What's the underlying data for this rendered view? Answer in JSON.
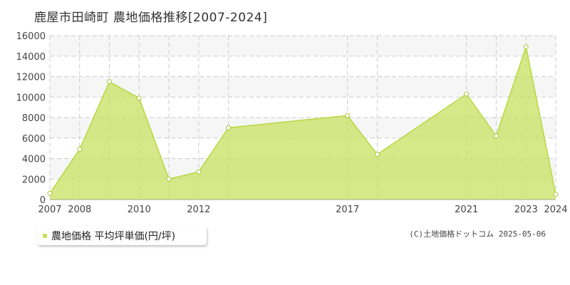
{
  "title": "鹿屋市田崎町 農地価格推移[2007-2024]",
  "credit": "(C)土地価格ドットコム 2025-05-06",
  "legend": {
    "label": "農地価格 平均坪単価(円/坪)",
    "color": "#c8e060"
  },
  "chart_data": {
    "type": "area",
    "title": "鹿屋市田崎町 農地価格推移[2007-2024]",
    "x": [
      2007,
      2008,
      2009,
      2010,
      2011,
      2012,
      2013,
      2017,
      2018,
      2021,
      2022,
      2023,
      2024
    ],
    "x_tick_labels": [
      "2007",
      "2008",
      "2010",
      "2012",
      "2017",
      "2021",
      "2023",
      "2024"
    ],
    "y_ticks": [
      0,
      2000,
      4000,
      6000,
      8000,
      10000,
      12000,
      14000,
      16000
    ],
    "ylim": [
      0,
      16000
    ],
    "grid": true,
    "series": [
      {
        "name": "農地価格 平均坪単価(円/坪)",
        "values": [
          600,
          4900,
          11500,
          9900,
          2000,
          2700,
          7000,
          8200,
          4400,
          10300,
          6200,
          14900,
          500
        ],
        "color": "#c8e060"
      }
    ]
  }
}
